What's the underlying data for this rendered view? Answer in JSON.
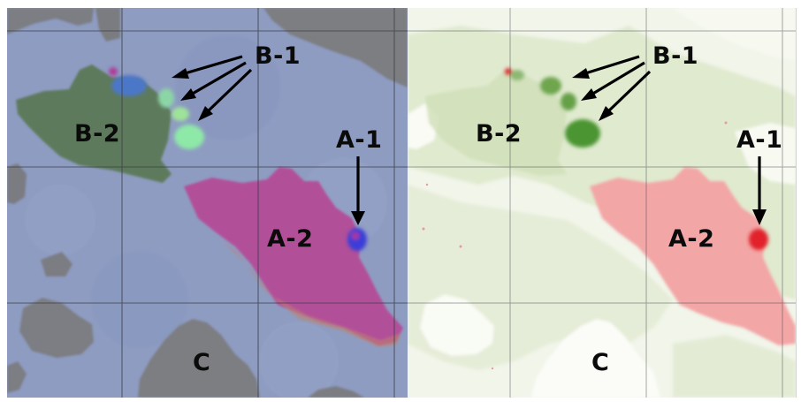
{
  "figure": {
    "panels": [
      {
        "id": "left",
        "labels": {
          "b1": "B-1",
          "b2": "B-2",
          "a1": "A-1",
          "a2": "A-2",
          "c": "C"
        }
      },
      {
        "id": "right",
        "labels": {
          "b1": "B-1",
          "b2": "B-2",
          "a1": "A-1",
          "a2": "A-2",
          "c": "C"
        }
      }
    ],
    "colors": {
      "left_background": "#8e9cc2",
      "left_dark_regions": "#7d7e82",
      "left_green_region": "#5c7a5c",
      "left_magenta_region": "#b04e98",
      "left_bright_green_spots": "#88e2a0",
      "left_blue_spot": "#3f3ce0",
      "right_background": "#f4f7ee",
      "right_light_green": "#dde8cc",
      "right_green_spots": "#4f9a34",
      "right_pink_region": "#f2a4a4",
      "right_red_spot": "#e3242b",
      "grid_lines": "#3b3f45",
      "arrows": "#000000"
    }
  }
}
